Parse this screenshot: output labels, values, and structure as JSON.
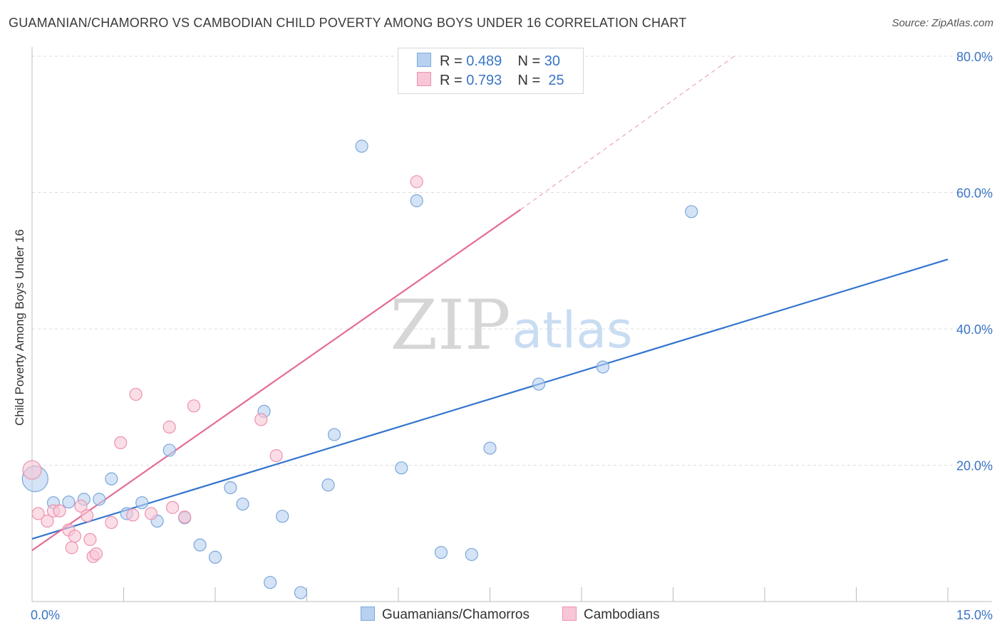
{
  "header": {
    "title": "GUAMANIAN/CHAMORRO VS CAMBODIAN CHILD POVERTY AMONG BOYS UNDER 16 CORRELATION CHART",
    "source": "Source: ZipAtlas.com"
  },
  "watermark": {
    "zip": "ZIP",
    "atlas": "atlas"
  },
  "legend": {
    "rows": [
      {
        "r_label": "R =",
        "r_value": "0.489",
        "n_label": "N =",
        "n_value": "30"
      },
      {
        "r_label": "R =",
        "r_value": "0.793",
        "n_label": "N =",
        "n_value": "25"
      }
    ]
  },
  "bottom_legend": {
    "series1": "Guamanians/Chamorros",
    "series2": "Cambodians"
  },
  "colors": {
    "blue_fill": "#b8d1f0",
    "blue_stroke": "#7aa7dc",
    "blue_line": "#3375cf",
    "pink_fill": "#f8c6d6",
    "pink_stroke": "#ec93b0",
    "pink_line": "#e46b96",
    "tick_text": "#3a75c4",
    "grid": "#dddddd"
  },
  "chart_data": {
    "type": "scatter",
    "title": "GUAMANIAN/CHAMORRO VS CAMBODIAN CHILD POVERTY AMONG BOYS UNDER 16 CORRELATION CHART",
    "xlabel": "",
    "ylabel": "Child Poverty Among Boys Under 16",
    "xlim": [
      0,
      15
    ],
    "ylim": [
      0,
      80
    ],
    "x_tick_labels": [
      "0.0%",
      "15.0%"
    ],
    "y_tick_labels": [
      "20.0%",
      "40.0%",
      "60.0%",
      "80.0%"
    ],
    "y_ticks": [
      20,
      40,
      60,
      80
    ],
    "grid": true,
    "series": [
      {
        "name": "Guamanians/Chamorros",
        "R": 0.489,
        "N": 30,
        "points": [
          [
            0.05,
            18.0
          ],
          [
            0.35,
            14.5
          ],
          [
            0.6,
            14.6
          ],
          [
            0.85,
            15.0
          ],
          [
            1.1,
            15.0
          ],
          [
            1.3,
            18.0
          ],
          [
            1.55,
            12.9
          ],
          [
            1.8,
            14.5
          ],
          [
            2.05,
            11.8
          ],
          [
            2.25,
            22.2
          ],
          [
            2.5,
            12.3
          ],
          [
            2.75,
            8.3
          ],
          [
            3.0,
            6.5
          ],
          [
            3.25,
            16.7
          ],
          [
            3.45,
            14.3
          ],
          [
            3.8,
            27.9
          ],
          [
            3.9,
            2.8
          ],
          [
            4.1,
            12.5
          ],
          [
            4.4,
            1.3
          ],
          [
            4.85,
            17.1
          ],
          [
            4.95,
            24.5
          ],
          [
            5.4,
            66.8
          ],
          [
            6.05,
            19.6
          ],
          [
            6.3,
            58.8
          ],
          [
            6.7,
            7.2
          ],
          [
            7.2,
            6.9
          ],
          [
            7.5,
            22.5
          ],
          [
            8.3,
            31.9
          ],
          [
            9.35,
            34.4
          ],
          [
            10.8,
            57.2
          ]
        ],
        "trend": {
          "x": [
            0.0,
            15.0
          ],
          "y": [
            9.2,
            50.2
          ]
        }
      },
      {
        "name": "Cambodians",
        "R": 0.793,
        "N": 25,
        "points": [
          [
            0.0,
            19.3
          ],
          [
            0.1,
            12.9
          ],
          [
            0.25,
            11.8
          ],
          [
            0.35,
            13.3
          ],
          [
            0.45,
            13.3
          ],
          [
            0.6,
            10.5
          ],
          [
            0.65,
            7.9
          ],
          [
            0.7,
            9.6
          ],
          [
            0.8,
            14.0
          ],
          [
            0.9,
            12.6
          ],
          [
            0.95,
            9.1
          ],
          [
            1.0,
            6.6
          ],
          [
            1.05,
            7.0
          ],
          [
            1.3,
            11.6
          ],
          [
            1.45,
            23.3
          ],
          [
            1.65,
            12.7
          ],
          [
            1.7,
            30.4
          ],
          [
            1.95,
            12.9
          ],
          [
            2.25,
            25.6
          ],
          [
            2.3,
            13.8
          ],
          [
            2.5,
            12.4
          ],
          [
            2.65,
            28.7
          ],
          [
            3.75,
            26.7
          ],
          [
            4.0,
            21.4
          ],
          [
            6.3,
            61.6
          ]
        ],
        "trend": {
          "x": [
            0.0,
            8.0
          ],
          "y": [
            7.5,
            57.5
          ]
        },
        "trend_extension": {
          "x": [
            8.0,
            11.5
          ],
          "y": [
            57.5,
            80.0
          ]
        }
      }
    ]
  }
}
